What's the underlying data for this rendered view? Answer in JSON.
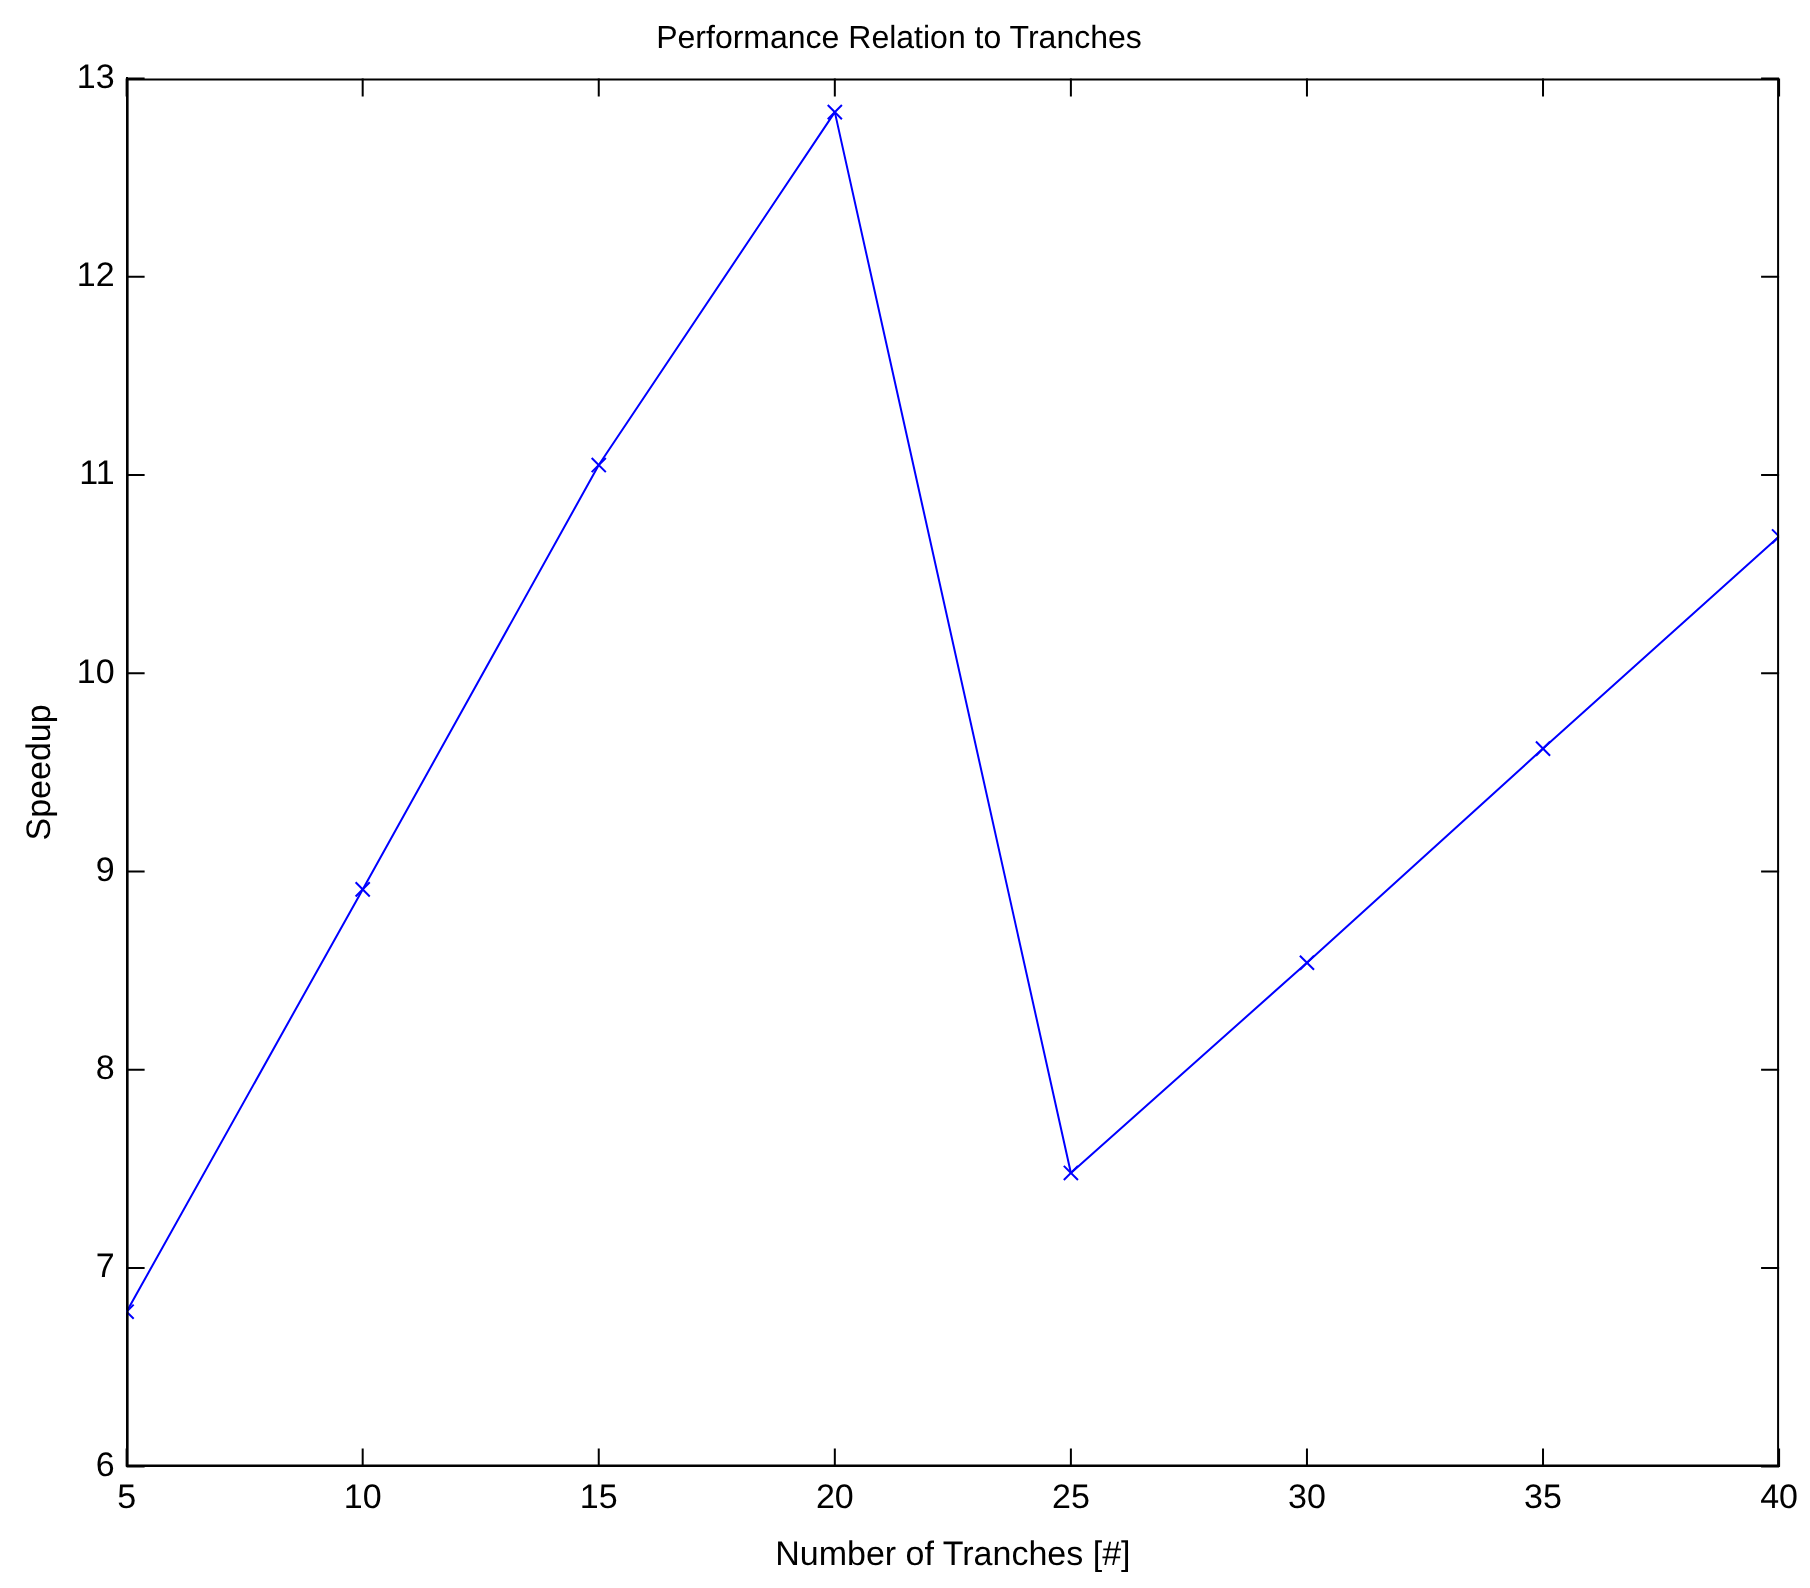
{
  "chart_data": {
    "type": "line",
    "title": "Performance Relation to Tranches",
    "xlabel": "Number of Tranches [#]",
    "ylabel": "Speedup",
    "x": [
      5,
      10,
      15,
      20,
      25,
      30,
      35,
      40
    ],
    "series": [
      {
        "color": "#0000ff",
        "values": [
          6.78,
          8.91,
          11.05,
          12.83,
          7.48,
          8.54,
          9.62,
          10.69
        ]
      }
    ],
    "xlim": [
      5,
      40
    ],
    "xticks": [
      5,
      10,
      15,
      20,
      25,
      30,
      35,
      40
    ],
    "ylim": [
      6,
      13
    ],
    "yticks": [
      6,
      7,
      8,
      9,
      10,
      11,
      12,
      13
    ],
    "grid": false,
    "legend": false,
    "marker": "cross",
    "line_style": "solid"
  }
}
